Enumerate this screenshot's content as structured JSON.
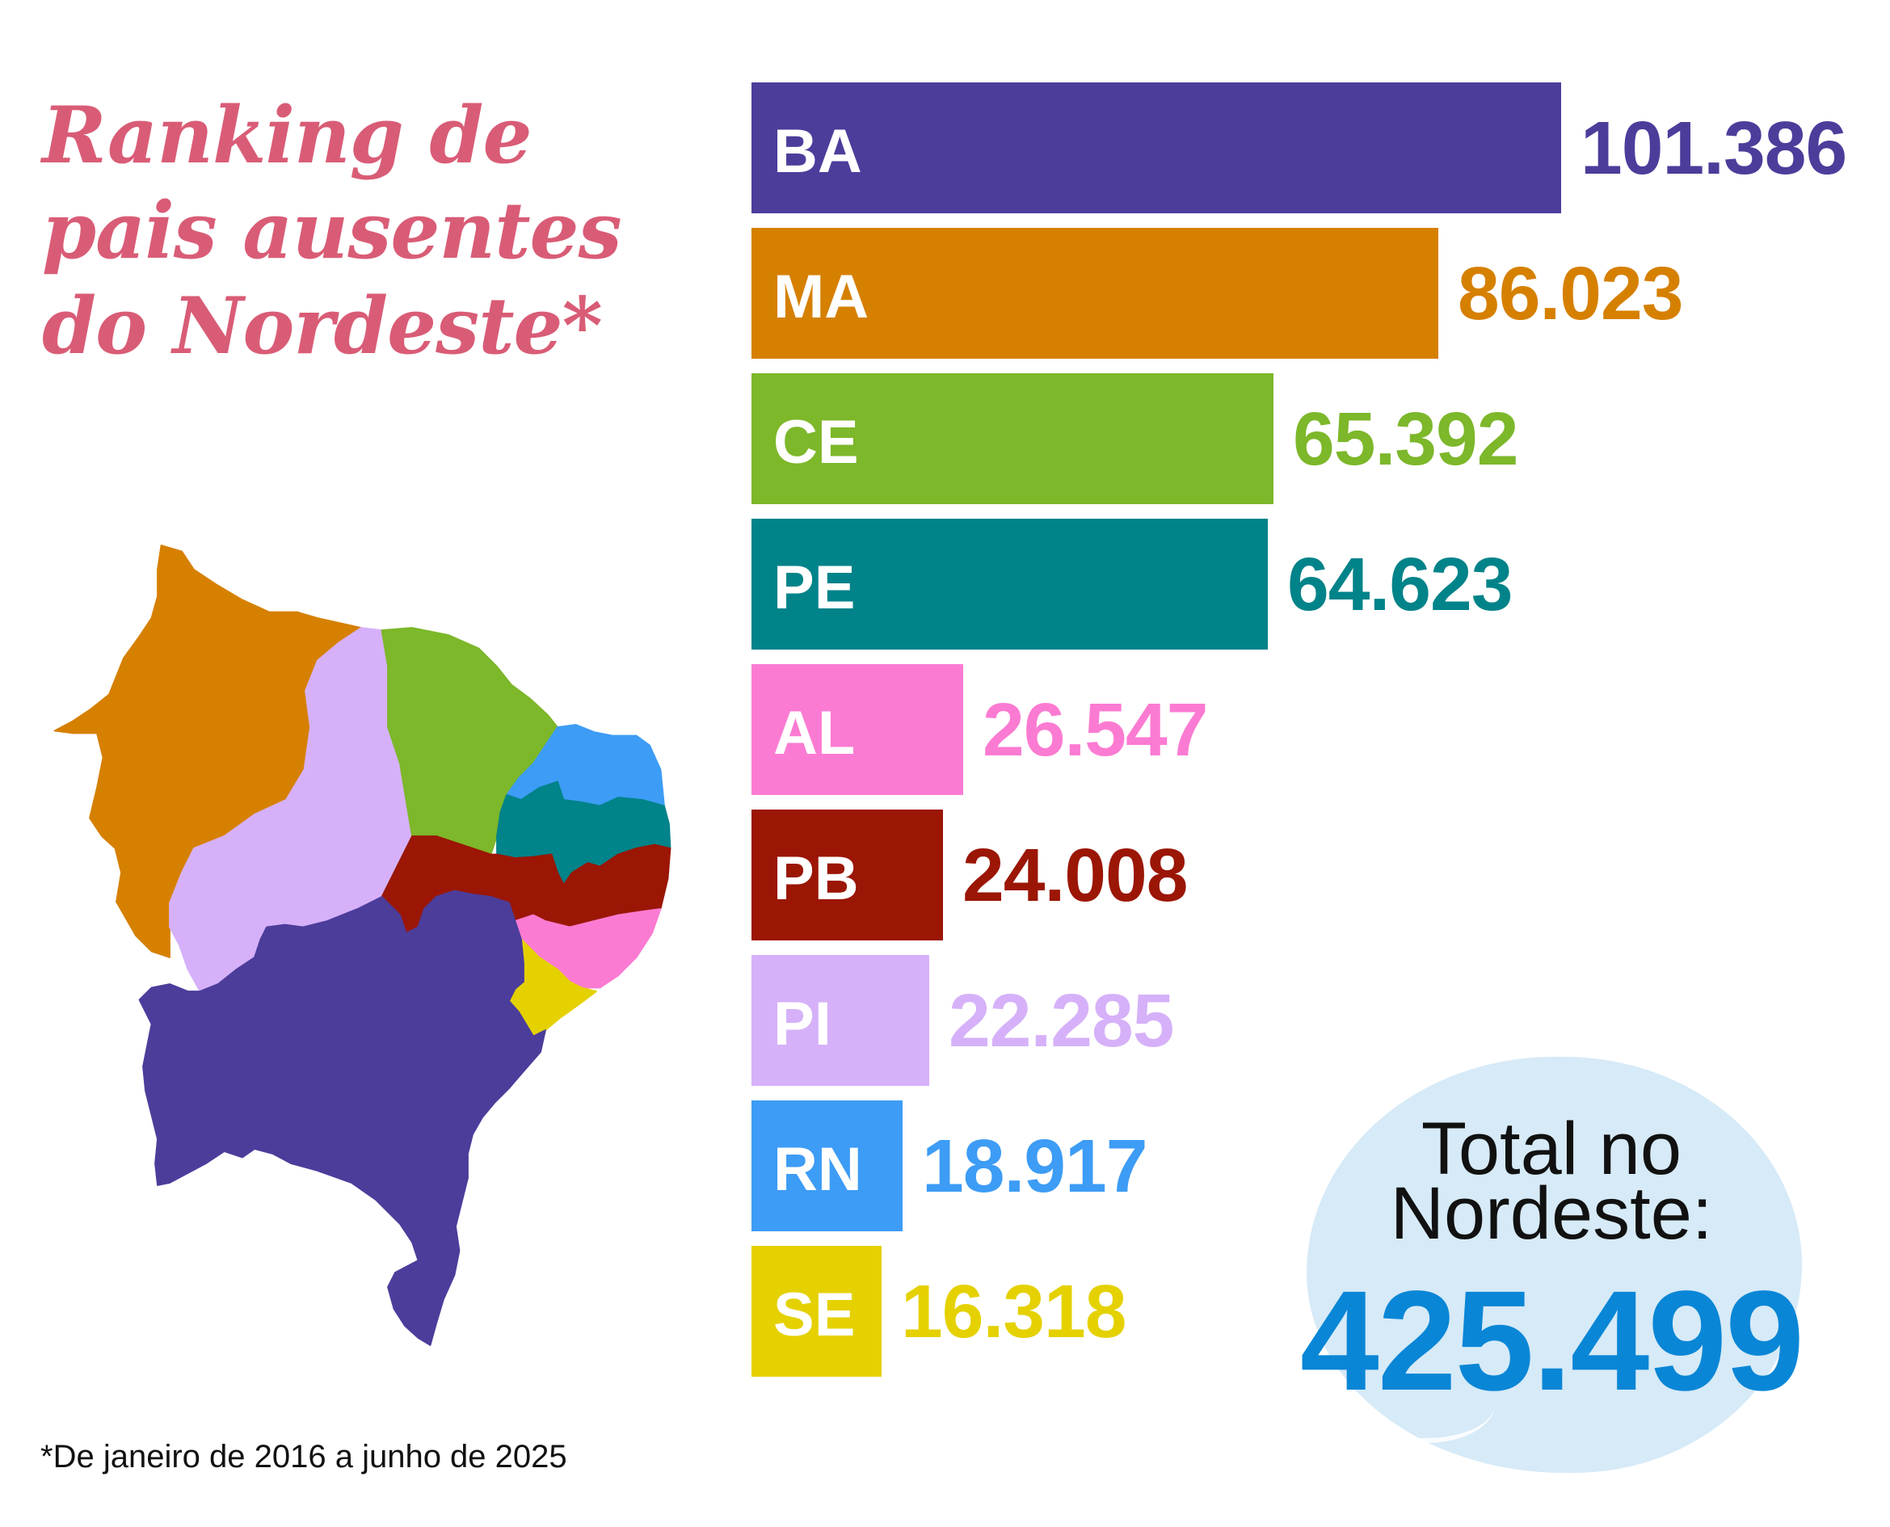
{
  "chart_data": {
    "type": "bar",
    "orientation": "horizontal",
    "title_lines": [
      "Ranking de",
      "pais ausentes",
      "do Nordeste*"
    ],
    "categories": [
      "BA",
      "MA",
      "CE",
      "PE",
      "AL",
      "PB",
      "PI",
      "RN",
      "SE"
    ],
    "values": [
      101386,
      86023,
      65392,
      64623,
      26547,
      24008,
      22285,
      18917,
      16318
    ],
    "value_labels": [
      "101.386",
      "86.023",
      "65.392",
      "64.623",
      "26.547",
      "24.008",
      "22.285",
      "18.917",
      "16.318"
    ],
    "colors": [
      "#4c3d9b",
      "#d68000",
      "#7db72a",
      "#008389",
      "#fb7bd2",
      "#9b1605",
      "#d6b1f9",
      "#3d9cf5",
      "#e5d100"
    ],
    "xlabel": "",
    "ylabel": "",
    "xlim": [
      0,
      101386
    ],
    "grid": false,
    "legend": "none"
  },
  "total": {
    "label_lines": [
      "Total no",
      "Nordeste:"
    ],
    "value": "425.499"
  },
  "footnote": "*De janeiro de 2016 a junho de 2025",
  "colors": {
    "title": "#d95c76",
    "blob": "#d6eaf7",
    "total_value": "#0986d6",
    "text": "#111111"
  }
}
